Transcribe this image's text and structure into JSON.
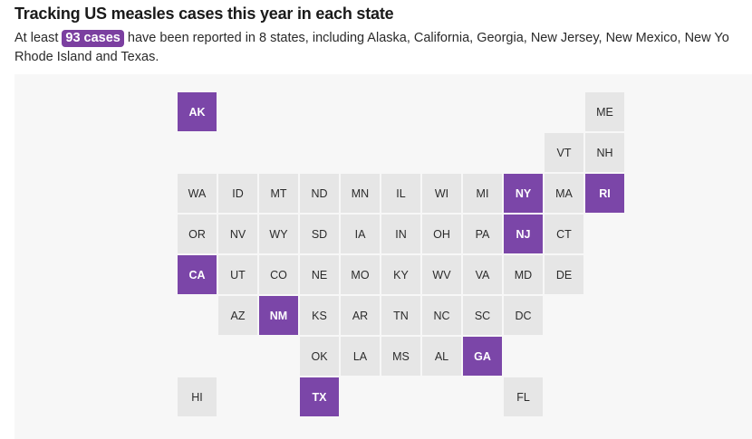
{
  "headline": "Tracking US measles cases this year in each state",
  "dek": {
    "prefix": "At least",
    "count_label": "93 cases",
    "suffix": "have been reported in 8 states, including Alaska, California, Georgia, New Jersey, New Mexico, New Yo",
    "continuation": "Rhode Island and Texas."
  },
  "colors": {
    "has_cases": "#7b46a8",
    "no_cases": "#e6e6e6"
  },
  "states": [
    {
      "abbr": "AK",
      "col": 0,
      "row": 0,
      "has_cases": true
    },
    {
      "abbr": "ME",
      "col": 10,
      "row": 0,
      "has_cases": false
    },
    {
      "abbr": "VT",
      "col": 9,
      "row": 1,
      "has_cases": false
    },
    {
      "abbr": "NH",
      "col": 10,
      "row": 1,
      "has_cases": false
    },
    {
      "abbr": "WA",
      "col": 0,
      "row": 2,
      "has_cases": false
    },
    {
      "abbr": "ID",
      "col": 1,
      "row": 2,
      "has_cases": false
    },
    {
      "abbr": "MT",
      "col": 2,
      "row": 2,
      "has_cases": false
    },
    {
      "abbr": "ND",
      "col": 3,
      "row": 2,
      "has_cases": false
    },
    {
      "abbr": "MN",
      "col": 4,
      "row": 2,
      "has_cases": false
    },
    {
      "abbr": "IL",
      "col": 5,
      "row": 2,
      "has_cases": false
    },
    {
      "abbr": "WI",
      "col": 6,
      "row": 2,
      "has_cases": false
    },
    {
      "abbr": "MI",
      "col": 7,
      "row": 2,
      "has_cases": false
    },
    {
      "abbr": "NY",
      "col": 8,
      "row": 2,
      "has_cases": true
    },
    {
      "abbr": "MA",
      "col": 9,
      "row": 2,
      "has_cases": false
    },
    {
      "abbr": "RI",
      "col": 10,
      "row": 2,
      "has_cases": true
    },
    {
      "abbr": "OR",
      "col": 0,
      "row": 3,
      "has_cases": false
    },
    {
      "abbr": "NV",
      "col": 1,
      "row": 3,
      "has_cases": false
    },
    {
      "abbr": "WY",
      "col": 2,
      "row": 3,
      "has_cases": false
    },
    {
      "abbr": "SD",
      "col": 3,
      "row": 3,
      "has_cases": false
    },
    {
      "abbr": "IA",
      "col": 4,
      "row": 3,
      "has_cases": false
    },
    {
      "abbr": "IN",
      "col": 5,
      "row": 3,
      "has_cases": false
    },
    {
      "abbr": "OH",
      "col": 6,
      "row": 3,
      "has_cases": false
    },
    {
      "abbr": "PA",
      "col": 7,
      "row": 3,
      "has_cases": false
    },
    {
      "abbr": "NJ",
      "col": 8,
      "row": 3,
      "has_cases": true
    },
    {
      "abbr": "CT",
      "col": 9,
      "row": 3,
      "has_cases": false
    },
    {
      "abbr": "CA",
      "col": 0,
      "row": 4,
      "has_cases": true
    },
    {
      "abbr": "UT",
      "col": 1,
      "row": 4,
      "has_cases": false
    },
    {
      "abbr": "CO",
      "col": 2,
      "row": 4,
      "has_cases": false
    },
    {
      "abbr": "NE",
      "col": 3,
      "row": 4,
      "has_cases": false
    },
    {
      "abbr": "MO",
      "col": 4,
      "row": 4,
      "has_cases": false
    },
    {
      "abbr": "KY",
      "col": 5,
      "row": 4,
      "has_cases": false
    },
    {
      "abbr": "WV",
      "col": 6,
      "row": 4,
      "has_cases": false
    },
    {
      "abbr": "VA",
      "col": 7,
      "row": 4,
      "has_cases": false
    },
    {
      "abbr": "MD",
      "col": 8,
      "row": 4,
      "has_cases": false
    },
    {
      "abbr": "DE",
      "col": 9,
      "row": 4,
      "has_cases": false
    },
    {
      "abbr": "AZ",
      "col": 1,
      "row": 5,
      "has_cases": false
    },
    {
      "abbr": "NM",
      "col": 2,
      "row": 5,
      "has_cases": true
    },
    {
      "abbr": "KS",
      "col": 3,
      "row": 5,
      "has_cases": false
    },
    {
      "abbr": "AR",
      "col": 4,
      "row": 5,
      "has_cases": false
    },
    {
      "abbr": "TN",
      "col": 5,
      "row": 5,
      "has_cases": false
    },
    {
      "abbr": "NC",
      "col": 6,
      "row": 5,
      "has_cases": false
    },
    {
      "abbr": "SC",
      "col": 7,
      "row": 5,
      "has_cases": false
    },
    {
      "abbr": "DC",
      "col": 8,
      "row": 5,
      "has_cases": false
    },
    {
      "abbr": "OK",
      "col": 3,
      "row": 6,
      "has_cases": false
    },
    {
      "abbr": "LA",
      "col": 4,
      "row": 6,
      "has_cases": false
    },
    {
      "abbr": "MS",
      "col": 5,
      "row": 6,
      "has_cases": false
    },
    {
      "abbr": "AL",
      "col": 6,
      "row": 6,
      "has_cases": false
    },
    {
      "abbr": "GA",
      "col": 7,
      "row": 6,
      "has_cases": true
    },
    {
      "abbr": "HI",
      "col": 0,
      "row": 7,
      "has_cases": false
    },
    {
      "abbr": "TX",
      "col": 3,
      "row": 7,
      "has_cases": true
    },
    {
      "abbr": "FL",
      "col": 8,
      "row": 7,
      "has_cases": false
    }
  ]
}
